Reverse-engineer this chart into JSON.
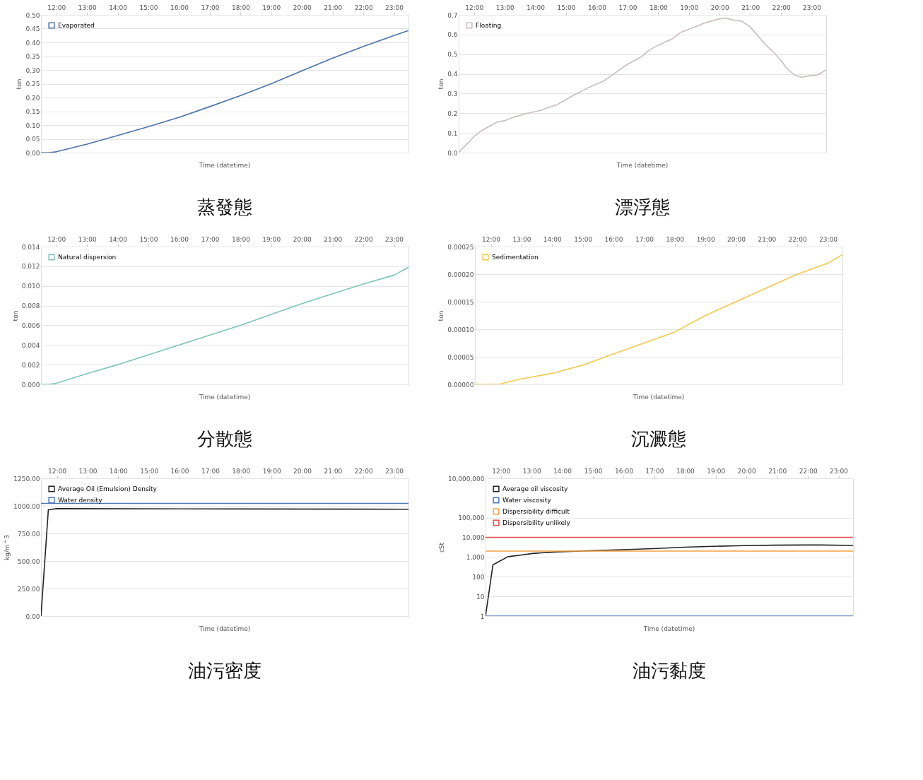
{
  "chart_data": [
    {
      "type": "line",
      "title": "蒸發態",
      "xlabel": "Time (datetime)",
      "ylabel": "ton",
      "grid": "y",
      "legend": "top left",
      "marker": "none",
      "line_style": "solid",
      "xlim": [
        11.5,
        23.47
      ],
      "xticks": [
        {
          "value": 12,
          "label": "12:00"
        },
        {
          "value": 13,
          "label": "13:00"
        },
        {
          "value": 14,
          "label": "14:00"
        },
        {
          "value": 15,
          "label": "15:00"
        },
        {
          "value": 16,
          "label": "16:00"
        },
        {
          "value": 17,
          "label": "17:00"
        },
        {
          "value": 18,
          "label": "18:00"
        },
        {
          "value": 19,
          "label": "19:00"
        },
        {
          "value": 20,
          "label": "20:00"
        },
        {
          "value": 21,
          "label": "21:00"
        },
        {
          "value": 22,
          "label": "22:00"
        },
        {
          "value": 23,
          "label": "23:00"
        }
      ],
      "ylim": [
        0,
        0.5
      ],
      "yticks": [
        {
          "value": 0,
          "label": "0.00"
        },
        {
          "value": 0.05,
          "label": "0.05"
        },
        {
          "value": 0.1,
          "label": "0.10"
        },
        {
          "value": 0.15,
          "label": "0.15"
        },
        {
          "value": 0.2,
          "label": "0.20"
        },
        {
          "value": 0.25,
          "label": "0.25"
        },
        {
          "value": 0.3,
          "label": "0.30"
        },
        {
          "value": 0.35,
          "label": "0.35"
        },
        {
          "value": 0.4,
          "label": "0.40"
        },
        {
          "value": 0.45,
          "label": "0.45"
        },
        {
          "value": 0.5,
          "label": "0.50"
        }
      ],
      "series": [
        {
          "name": "Evaporated",
          "color": "#4a72a8",
          "x": [
            11.5,
            11.75,
            12,
            13,
            14,
            15,
            16,
            17,
            18,
            19,
            20,
            21,
            22,
            23,
            23.47
          ],
          "values": [
            0,
            0,
            0.003,
            0.031,
            0.062,
            0.094,
            0.128,
            0.167,
            0.207,
            0.25,
            0.297,
            0.343,
            0.385,
            0.425,
            0.443
          ]
        }
      ]
    },
    {
      "type": "line",
      "title": "漂浮態",
      "xlabel": "Time (datetime)",
      "ylabel": "ton",
      "grid": "y",
      "legend": "top left",
      "marker": "none",
      "line_style": "solid",
      "xlim": [
        11.5,
        23.47
      ],
      "xticks": [
        {
          "value": 12,
          "label": "12:00"
        },
        {
          "value": 13,
          "label": "13:00"
        },
        {
          "value": 14,
          "label": "14:00"
        },
        {
          "value": 15,
          "label": "15:00"
        },
        {
          "value": 16,
          "label": "16:00"
        },
        {
          "value": 17,
          "label": "17:00"
        },
        {
          "value": 18,
          "label": "18:00"
        },
        {
          "value": 19,
          "label": "19:00"
        },
        {
          "value": 20,
          "label": "20:00"
        },
        {
          "value": 21,
          "label": "21:00"
        },
        {
          "value": 22,
          "label": "22:00"
        },
        {
          "value": 23,
          "label": "23:00"
        }
      ],
      "ylim": [
        0,
        0.7
      ],
      "yticks": [
        {
          "value": 0,
          "label": "0.0"
        },
        {
          "value": 0.1,
          "label": "0.1"
        },
        {
          "value": 0.2,
          "label": "0.2"
        },
        {
          "value": 0.3,
          "label": "0.3"
        },
        {
          "value": 0.4,
          "label": "0.4"
        },
        {
          "value": 0.5,
          "label": "0.5"
        },
        {
          "value": 0.6,
          "label": "0.6"
        },
        {
          "value": 0.7,
          "label": "0.7"
        }
      ],
      "series": [
        {
          "name": "Floating",
          "color": "#c8bcbc",
          "x": [
            11.5,
            12.0,
            12.27,
            12.75,
            13.0,
            13.27,
            13.47,
            13.72,
            14.19,
            14.44,
            14.69,
            15.2,
            15.7,
            15.97,
            16.22,
            16.64,
            16.98,
            17.45,
            17.7,
            18.0,
            18.47,
            18.72,
            19.19,
            19.48,
            19.95,
            20.2,
            20.46,
            20.71,
            20.97,
            21.22,
            21.47,
            21.73,
            21.98,
            22.19,
            22.44,
            22.67,
            22.92,
            23.17,
            23.47
          ],
          "values": [
            0,
            0.081,
            0.114,
            0.155,
            0.162,
            0.179,
            0.188,
            0.199,
            0.215,
            0.231,
            0.242,
            0.288,
            0.328,
            0.347,
            0.363,
            0.41,
            0.447,
            0.487,
            0.52,
            0.546,
            0.579,
            0.61,
            0.638,
            0.657,
            0.678,
            0.684,
            0.673,
            0.668,
            0.642,
            0.599,
            0.552,
            0.514,
            0.471,
            0.428,
            0.394,
            0.382,
            0.39,
            0.394,
            0.42
          ]
        }
      ]
    },
    {
      "type": "line",
      "title": "分散態",
      "xlabel": "Time (datetime)",
      "ylabel": "ton",
      "grid": "y",
      "legend": "top left",
      "marker": "none",
      "line_style": "solid",
      "xlim": [
        11.5,
        23.47
      ],
      "xticks": [
        {
          "value": 12,
          "label": "12:00"
        },
        {
          "value": 13,
          "label": "13:00"
        },
        {
          "value": 14,
          "label": "14:00"
        },
        {
          "value": 15,
          "label": "15:00"
        },
        {
          "value": 16,
          "label": "16:00"
        },
        {
          "value": 17,
          "label": "17:00"
        },
        {
          "value": 18,
          "label": "18:00"
        },
        {
          "value": 19,
          "label": "19:00"
        },
        {
          "value": 20,
          "label": "20:00"
        },
        {
          "value": 21,
          "label": "21:00"
        },
        {
          "value": 22,
          "label": "22:00"
        },
        {
          "value": 23,
          "label": "23:00"
        }
      ],
      "ylim": [
        0,
        0.014
      ],
      "yticks": [
        {
          "value": 0,
          "label": "0.000"
        },
        {
          "value": 0.002,
          "label": "0.002"
        },
        {
          "value": 0.004,
          "label": "0.004"
        },
        {
          "value": 0.006,
          "label": "0.006"
        },
        {
          "value": 0.008,
          "label": "0.008"
        },
        {
          "value": 0.01,
          "label": "0.010"
        },
        {
          "value": 0.012,
          "label": "0.012"
        },
        {
          "value": 0.014,
          "label": "0.014"
        }
      ],
      "series": [
        {
          "name": "Natural dispersion",
          "color": "#7cc4b8",
          "x": [
            11.5,
            11.75,
            12,
            13,
            14,
            15,
            16,
            17,
            18,
            19,
            20,
            21,
            22,
            23,
            23.47
          ],
          "values": [
            0,
            0,
            0.0001,
            0.0011,
            0.002,
            0.003,
            0.004,
            0.005,
            0.006,
            0.0071,
            0.0082,
            0.0092,
            0.0102,
            0.0111,
            0.0119
          ]
        }
      ]
    },
    {
      "type": "line",
      "title": "沉澱態",
      "xlabel": "Time (datetime)",
      "ylabel": "ton",
      "grid": "y",
      "legend": "top left",
      "marker": "none",
      "line_style": "solid",
      "xlim": [
        11.48,
        23.47
      ],
      "xticks": [
        {
          "value": 12,
          "label": "12:00"
        },
        {
          "value": 13,
          "label": "13:00"
        },
        {
          "value": 14,
          "label": "14:00"
        },
        {
          "value": 15,
          "label": "15:00"
        },
        {
          "value": 16,
          "label": "16:00"
        },
        {
          "value": 17,
          "label": "17:00"
        },
        {
          "value": 18,
          "label": "18:00"
        },
        {
          "value": 19,
          "label": "19:00"
        },
        {
          "value": 20,
          "label": "20:00"
        },
        {
          "value": 21,
          "label": "21:00"
        },
        {
          "value": 22,
          "label": "22:00"
        },
        {
          "value": 23,
          "label": "23:00"
        }
      ],
      "ylim": [
        0,
        0.00025
      ],
      "yticks": [
        {
          "value": 0,
          "label": "0.00000"
        },
        {
          "value": 5e-05,
          "label": "0.00005"
        },
        {
          "value": 0.0001,
          "label": "0.00010"
        },
        {
          "value": 0.00015,
          "label": "0.00015"
        },
        {
          "value": 0.0002,
          "label": "0.00020"
        },
        {
          "value": 0.00025,
          "label": "0.00025"
        }
      ],
      "series": [
        {
          "name": "Sedimentation",
          "color": "#f2c84b",
          "x": [
            11.48,
            12.25,
            13,
            14,
            15,
            16,
            17,
            18,
            19,
            20,
            21,
            22,
            23,
            23.47
          ],
          "values": [
            0,
            0,
            1e-05,
            2e-05,
            3.5e-05,
            5.5e-05,
            7.5e-05,
            9.5e-05,
            0.000125,
            0.00015,
            0.000175,
            0.0002,
            0.00022,
            0.000235
          ]
        }
      ]
    },
    {
      "type": "line",
      "title": "油污密度",
      "xlabel": "Time (datetime)",
      "ylabel": "kg/m^3",
      "grid": "y",
      "legend": "top left",
      "marker": "none",
      "line_style": "solid",
      "xlim": [
        11.48,
        23.47
      ],
      "xticks": [
        {
          "value": 12,
          "label": "12:00"
        },
        {
          "value": 13,
          "label": "13:00"
        },
        {
          "value": 14,
          "label": "14:00"
        },
        {
          "value": 15,
          "label": "15:00"
        },
        {
          "value": 16,
          "label": "16:00"
        },
        {
          "value": 17,
          "label": "17:00"
        },
        {
          "value": 18,
          "label": "18:00"
        },
        {
          "value": 19,
          "label": "19:00"
        },
        {
          "value": 20,
          "label": "20:00"
        },
        {
          "value": 21,
          "label": "21:00"
        },
        {
          "value": 22,
          "label": "22:00"
        },
        {
          "value": 23,
          "label": "23:00"
        }
      ],
      "ylim": [
        0,
        1250
      ],
      "yticks": [
        {
          "value": 0,
          "label": "0.00"
        },
        {
          "value": 250,
          "label": "250.00"
        },
        {
          "value": 500,
          "label": "500.00"
        },
        {
          "value": 750,
          "label": "750.00"
        },
        {
          "value": 1000,
          "label": "1000.00"
        },
        {
          "value": 1250,
          "label": "1250.00"
        }
      ],
      "series": [
        {
          "name": "Average Oil (Emulsion) Density",
          "color": "#222222",
          "x": [
            11.48,
            11.72,
            12.0,
            18.0,
            23.47
          ],
          "values": [
            0,
            965,
            975,
            972,
            970
          ]
        },
        {
          "name": "Water density",
          "color": "#4a78b8",
          "x": [
            11.48,
            23.47
          ],
          "values": [
            1022,
            1022
          ]
        }
      ]
    },
    {
      "type": "line",
      "title": "油污黏度",
      "xlabel": "Time (datetime)",
      "ylabel": "cSt",
      "grid": "y",
      "legend": "top left",
      "marker": "none",
      "line_style": "solid",
      "log": "y",
      "xlim": [
        11.5,
        23.47
      ],
      "xticks": [
        {
          "value": 12,
          "label": "12:00"
        },
        {
          "value": 13,
          "label": "13:00"
        },
        {
          "value": 14,
          "label": "14:00"
        },
        {
          "value": 15,
          "label": "15:00"
        },
        {
          "value": 16,
          "label": "16:00"
        },
        {
          "value": 17,
          "label": "17:00"
        },
        {
          "value": 18,
          "label": "18:00"
        },
        {
          "value": 19,
          "label": "19:00"
        },
        {
          "value": 20,
          "label": "20:00"
        },
        {
          "value": 21,
          "label": "21:00"
        },
        {
          "value": 22,
          "label": "22:00"
        },
        {
          "value": 23,
          "label": "23:00"
        }
      ],
      "ylim": [
        1,
        10000000
      ],
      "yticks": [
        1,
        10,
        100,
        {
          "value": 1000,
          "label": "1,000"
        },
        {
          "value": 10000,
          "label": "10,000"
        },
        {
          "value": 100000,
          "label": "100,000"
        },
        {
          "value": 10000000,
          "label": "10,000,000"
        }
      ],
      "series": [
        {
          "name": "Average oil viscosity",
          "color": "#222222",
          "x": [
            11.5,
            11.74,
            12.23,
            12.59,
            13.03,
            13.8,
            15.97,
            16.97,
            17.97,
            18.92,
            19.92,
            20.92,
            21.88,
            22.4,
            23.47
          ],
          "values": [
            1,
            400,
            1050,
            1230,
            1520,
            1830,
            2370,
            2690,
            3160,
            3510,
            3800,
            4000,
            4100,
            4100,
            3900
          ]
        },
        {
          "name": "Water viscosity",
          "color": "#4a78b8",
          "x": [
            11.5,
            23.47
          ],
          "values": [
            1,
            1
          ]
        },
        {
          "name": "Dispersibility difficult",
          "color": "#f5a040",
          "x": [
            11.5,
            23.47
          ],
          "values": [
            2000,
            2000
          ]
        },
        {
          "name": "Dispersibility unlikely",
          "color": "#e84c4c",
          "x": [
            11.5,
            23.47
          ],
          "values": [
            10000,
            10000
          ]
        }
      ]
    }
  ]
}
